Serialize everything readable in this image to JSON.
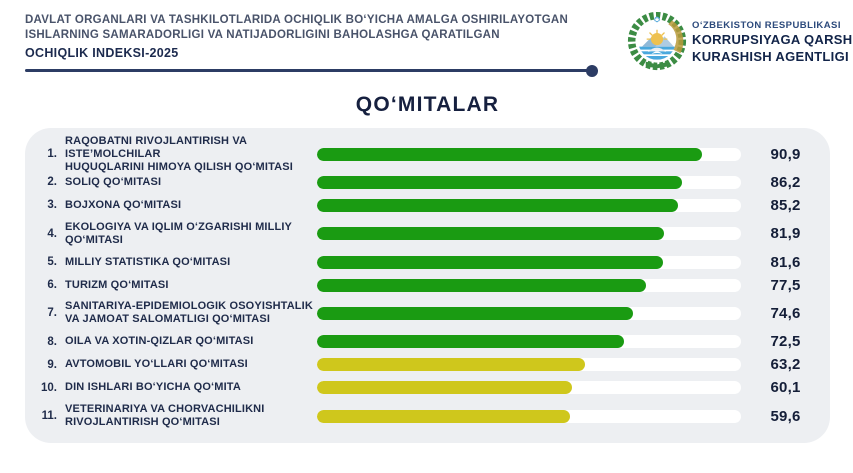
{
  "header": {
    "line1": "DAVLAT ORGANLARI VA TASHKILOTLARIDA OCHIQLIK BO‘YICHA AMALGA OSHIRILAYOTGAN",
    "line2": "ISHLARNING SAMARADORLIGI VA NATIJADORLIGINI BAHOLASHGA QARATILGAN",
    "line3": "OCHIQLIK INDEKSI-2025"
  },
  "agency": {
    "line1": "O‘ZBEKISTON RESPUBLIKASI",
    "line2": "KORRUPSIYAGA QARSHI",
    "line3": "KURASHISH AGENTLIGI",
    "emblem_icon": "uzbekistan-state-emblem-icon"
  },
  "chart_title": "QO‘MITALAR",
  "colors": {
    "navy_text": "#1c2a4e",
    "slate_text": "#49536a",
    "panel_bg": "#edeff2",
    "track_bg": "#ffffff",
    "green_bar": "#1a9b12",
    "yellow_bar": "#cfc71c",
    "divider": "#2c3c64"
  },
  "chart_data": {
    "type": "bar",
    "orientation": "horizontal",
    "title": "QO‘MITALAR",
    "xlabel": "",
    "ylabel": "",
    "xlim": [
      0,
      100
    ],
    "grid": false,
    "legend": false,
    "categories": [
      "RAQOBATNI RIVOJLANTIRISH VA ISTE’MOLCHILAR HUQUQLARINI HIMOYA QILISH QO‘MITASI",
      "SOLIQ QO‘MITASI",
      "BOJXONA QO‘MITASI",
      "EKOLOGIYA VA IQLIM O‘ZGARISHI MILLIY QO‘MITASI",
      "MILLIY STATISTIKA QO‘MITASI",
      "TURIZM QO‘MITASI",
      "SANITARIYA-EPIDEMIOLOGIK OSOYISHTALIK VA JAMOAT SALOMATLIGI QO‘MITASI",
      "OILA VA XOTIN-QIZLAR QO‘MITASI",
      "AVTOMOBIL YO‘LLARI QO‘MITASI",
      "DIN ISHLARI BO‘YICHA QO‘MITA",
      "VETERINARIYA VA CHORVACHILIKNI RIVOJLANTIRISH QO‘MITASI"
    ],
    "display_labels": [
      "RAQOBATNI RIVOJLANTIRISH VA ISTE’MOLCHILAR\nHUQUQLARINI HIMOYA QILISH QO‘MITASI",
      "SOLIQ QO‘MITASI",
      "BOJXONA QO‘MITASI",
      "EKOLOGIYA VA IQLIM O‘ZGARISHI MILLIY\nQO‘MITASI",
      "MILLIY STATISTIKA QO‘MITASI",
      "TURIZM QO‘MITASI",
      "SANITARIYA-EPIDEMIOLOGIK OSOYISHTALIK\nVA JAMOAT SALOMATLIGI QO‘MITASI",
      "OILA VA XOTIN-QIZLAR QO‘MITASI",
      "AVTOMOBIL YO‘LLARI QO‘MITASI",
      "DIN ISHLARI BO‘YICHA QO‘MITA",
      "VETERINARIYA VA CHORVACHILIKNI\nRIVOJLANTIRISH QO‘MITASI"
    ],
    "values": [
      90.9,
      86.2,
      85.2,
      81.9,
      81.6,
      77.5,
      74.6,
      72.5,
      63.2,
      60.1,
      59.6
    ],
    "value_labels": [
      "90,9",
      "86,2",
      "85,2",
      "81,9",
      "81,6",
      "77,5",
      "74,6",
      "72,5",
      "63,2",
      "60,1",
      "59,6"
    ],
    "bar_colors": [
      "#1a9b12",
      "#1a9b12",
      "#1a9b12",
      "#1a9b12",
      "#1a9b12",
      "#1a9b12",
      "#1a9b12",
      "#1a9b12",
      "#cfc71c",
      "#cfc71c",
      "#cfc71c"
    ]
  }
}
